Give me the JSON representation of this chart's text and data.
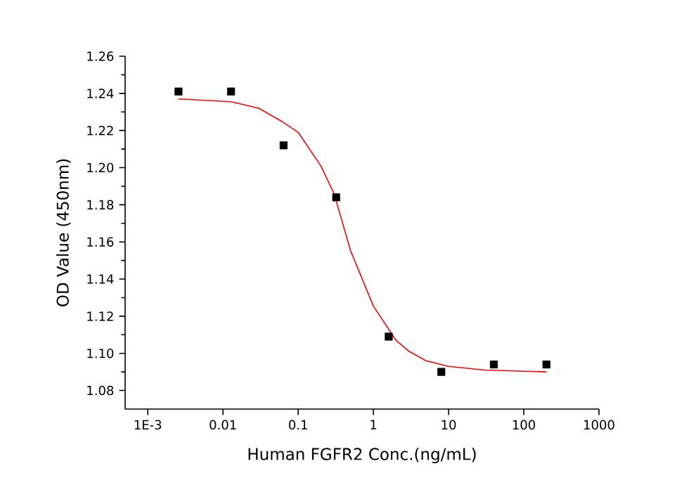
{
  "chart_data": {
    "type": "scatter",
    "xlabel": "Human FGFR2 Conc.(ng/mL)",
    "ylabel": "OD Value (450nm)",
    "log": "x",
    "xlim": [
      0.0005,
      1000
    ],
    "ylim": [
      1.07,
      1.26
    ],
    "xticks": [
      {
        "value": 0.001,
        "label": "1E-3"
      },
      0.01,
      0.1,
      1,
      10,
      100,
      1000
    ],
    "yticks": [
      1.08,
      {
        "value": 1.1,
        "label": "1.10"
      },
      1.12,
      1.14,
      1.16,
      1.18,
      {
        "value": 1.2,
        "label": "1.20"
      },
      1.22,
      1.24,
      1.26
    ],
    "series": [
      {
        "marker": "square",
        "color": "#000000",
        "x": [
          0.00256,
          0.0128,
          0.064,
          0.32,
          1.6,
          8,
          40,
          200
        ],
        "values": [
          1.241,
          1.241,
          1.212,
          1.184,
          1.109,
          1.09,
          1.094,
          1.094
        ]
      },
      {
        "type": "line",
        "marker": "none",
        "line_style": "solid",
        "color": "#ff0000",
        "x": [
          0.00256,
          0.0128,
          0.03,
          0.06,
          0.1,
          0.2,
          0.3,
          0.5,
          1,
          2,
          3,
          5,
          10,
          30,
          200
        ],
        "values": [
          1.237,
          1.2355,
          1.232,
          1.225,
          1.219,
          1.201,
          1.186,
          1.155,
          1.1255,
          1.107,
          1.101,
          1.096,
          1.093,
          1.091,
          1.09
        ]
      }
    ]
  }
}
